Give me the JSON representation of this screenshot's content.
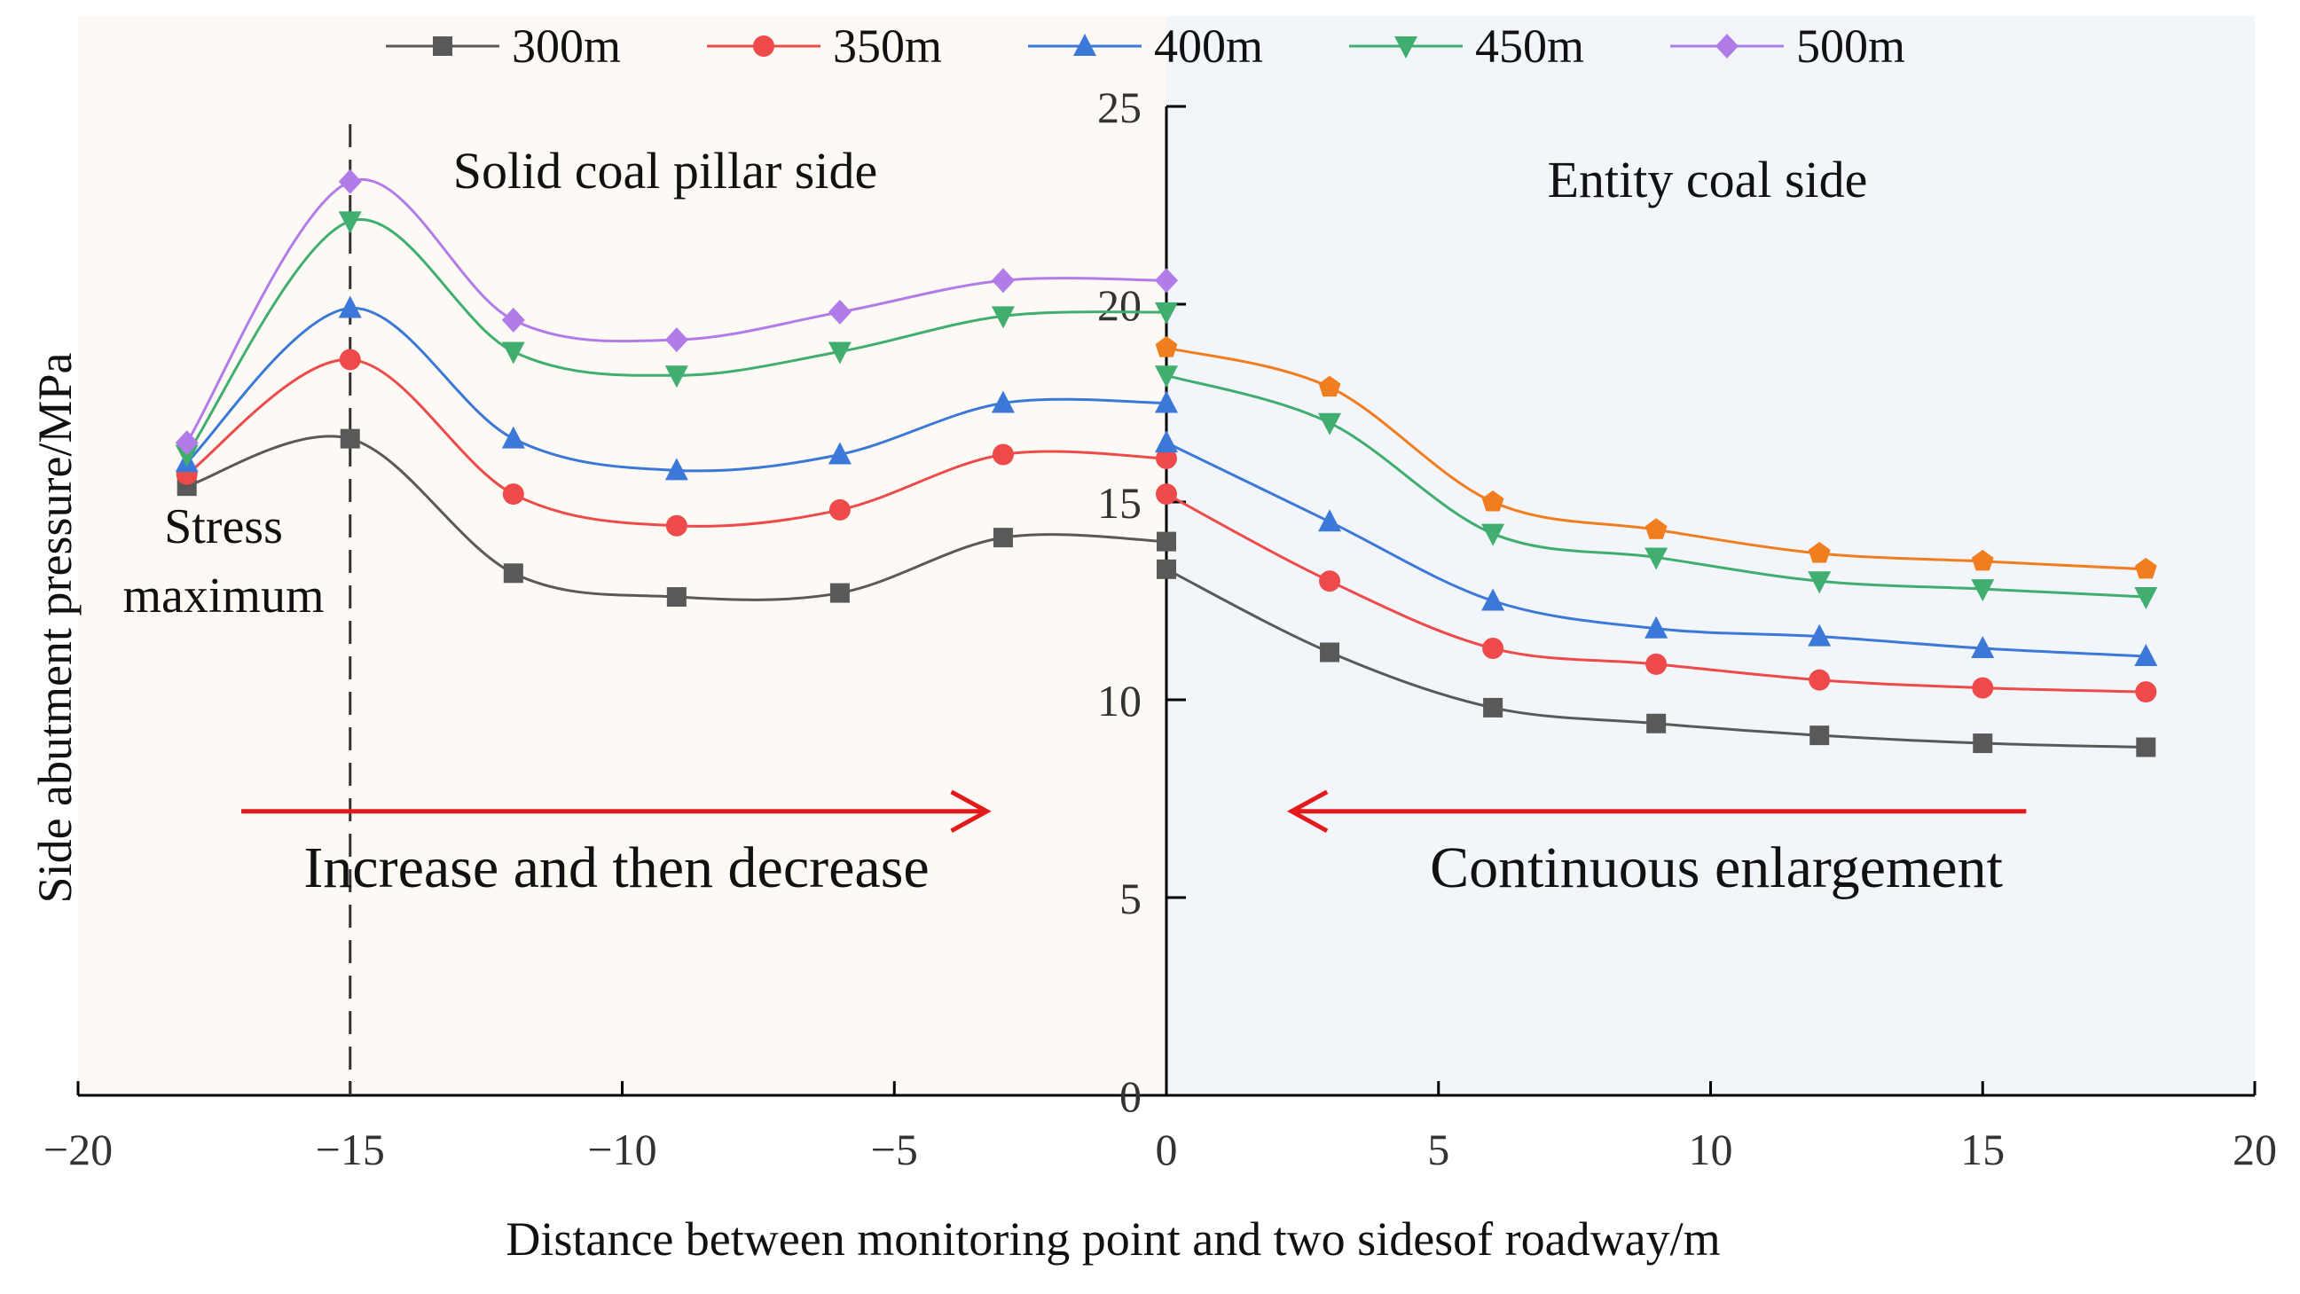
{
  "chart_data": {
    "type": "line",
    "title": "",
    "xlabel": "Distance between monitoring point and two sidesof roadway/m",
    "ylabel": "Side abutment pressure/MPa",
    "xlim": [
      -20,
      20
    ],
    "ylim": [
      0,
      25
    ],
    "x_ticks": [
      "−20",
      "−15",
      "−10",
      "−5",
      "0",
      "5",
      "10",
      "15",
      "20"
    ],
    "x_tick_values": [
      -20,
      -15,
      -10,
      -5,
      0,
      5,
      10,
      15,
      20
    ],
    "y_ticks": [
      "0",
      "5",
      "10",
      "15",
      "20",
      "25"
    ],
    "y_tick_values": [
      0,
      5,
      10,
      15,
      20,
      25
    ],
    "legend_position": "top",
    "left_region_color": "#FDF9F4",
    "right_region_color": "#F2F5FA",
    "series": [
      {
        "name": "300m",
        "color": "#595959",
        "marker": "square",
        "left": {
          "x": [
            -18,
            -15,
            -12,
            -9,
            -6,
            -3,
            0
          ],
          "y": [
            15.4,
            16.6,
            13.2,
            12.6,
            12.7,
            14.1,
            14.0
          ]
        },
        "right": {
          "x": [
            0,
            3,
            6,
            9,
            12,
            15,
            18
          ],
          "y": [
            13.3,
            11.2,
            9.8,
            9.4,
            9.1,
            8.9,
            8.8
          ]
        }
      },
      {
        "name": "350m",
        "color": "#EE4A4A",
        "marker": "circle",
        "left": {
          "x": [
            -18,
            -15,
            -12,
            -9,
            -6,
            -3,
            0
          ],
          "y": [
            15.7,
            18.6,
            15.2,
            14.4,
            14.8,
            16.2,
            16.1
          ]
        },
        "right": {
          "x": [
            0,
            3,
            6,
            9,
            12,
            15,
            18
          ],
          "y": [
            15.2,
            13.0,
            11.3,
            10.9,
            10.5,
            10.3,
            10.2
          ]
        }
      },
      {
        "name": "400m",
        "color": "#3C78D8",
        "marker": "triangle-up",
        "left": {
          "x": [
            -18,
            -15,
            -12,
            -9,
            -6,
            -3,
            0
          ],
          "y": [
            16.0,
            19.9,
            16.6,
            15.8,
            16.2,
            17.5,
            17.5
          ]
        },
        "right": {
          "x": [
            0,
            3,
            6,
            9,
            12,
            15,
            18
          ],
          "y": [
            16.5,
            14.5,
            12.5,
            11.8,
            11.6,
            11.3,
            11.1
          ]
        }
      },
      {
        "name": "450m",
        "color": "#3FAE6E",
        "marker": "triangle-down",
        "left": {
          "x": [
            -18,
            -15,
            -12,
            -9,
            -6,
            -3,
            0
          ],
          "y": [
            16.2,
            22.1,
            18.8,
            18.2,
            18.8,
            19.7,
            19.8
          ]
        },
        "right": {
          "x": [
            0,
            3,
            6,
            9,
            12,
            15,
            18
          ],
          "y": [
            18.2,
            17.0,
            14.2,
            13.6,
            13.0,
            12.8,
            12.6
          ]
        }
      },
      {
        "name": "500m",
        "color": "#B17CE8",
        "marker": "diamond",
        "left": {
          "x": [
            -18,
            -15,
            -12,
            -9,
            -6,
            -3,
            0
          ],
          "y": [
            16.5,
            23.1,
            19.6,
            19.1,
            19.8,
            20.6,
            20.6
          ]
        },
        "right": {
          "x": [
            0,
            3,
            6,
            9,
            12,
            15,
            18
          ],
          "y": [
            18.9,
            17.9,
            15.0,
            14.3,
            13.7,
            13.5,
            13.3
          ]
        }
      }
    ],
    "right_side_top_series_color": "#F07D1E",
    "annotations": {
      "left_region": "Solid coal pillar side",
      "right_region": "Entity coal side",
      "stress_line_1": "Stress",
      "stress_line_2": "maximum",
      "left_trend": "Increase and then decrease",
      "right_trend": "Continuous enlargement",
      "stress_max_x": -15,
      "arrow_y": 7,
      "left_arrow_x": [
        -17,
        -3.3
      ],
      "right_arrow_x": [
        15.8,
        2.3
      ],
      "arrow_color": "#E31A1C"
    }
  }
}
